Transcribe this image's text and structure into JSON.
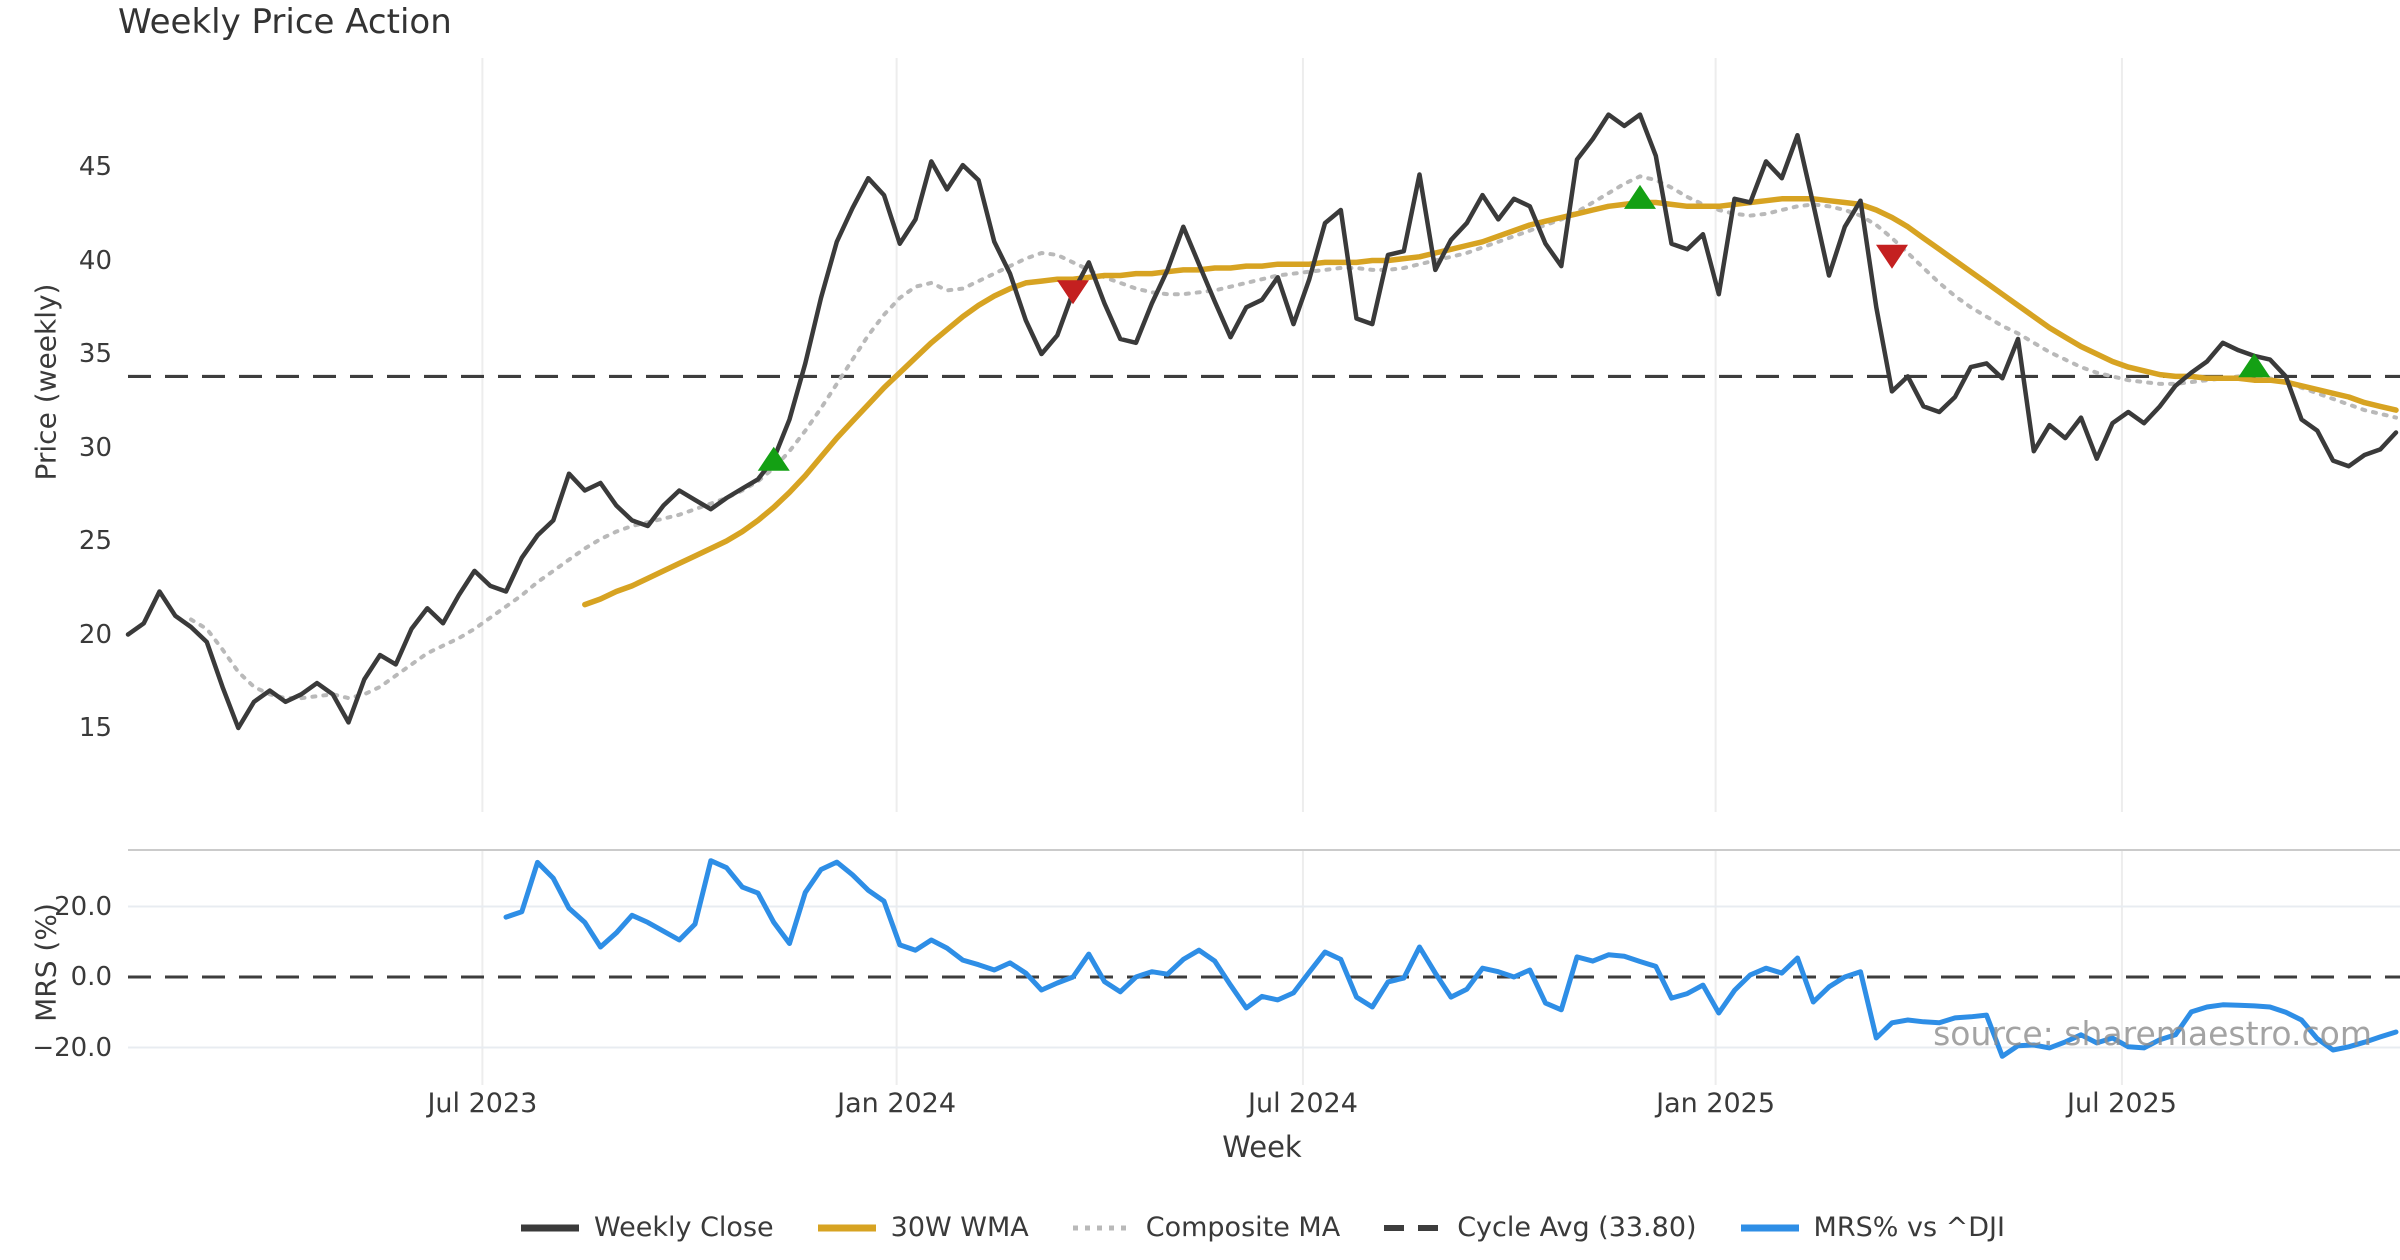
{
  "title": "Weekly Price Action",
  "watermark": "source: sharemaestro.com",
  "axes": {
    "price_axis_label": "Price (weekly)",
    "mrs_axis_label": "MRS (%)",
    "x_axis_label": "Week",
    "price_ticks": [
      15,
      20,
      25,
      30,
      35,
      40,
      45
    ],
    "mrs_ticks": [
      {
        "label": "20.0",
        "value": 20
      },
      {
        "label": "0.0",
        "value": 0
      },
      {
        "label": "−20.0",
        "value": -20
      }
    ],
    "x_ticks": [
      {
        "label": "Jul 2023",
        "week": 22.5
      },
      {
        "label": "Jan 2024",
        "week": 48.8
      },
      {
        "label": "Jul 2024",
        "week": 74.6
      },
      {
        "label": "Jan 2025",
        "week": 100.8
      },
      {
        "label": "Jul 2025",
        "week": 126.6
      }
    ]
  },
  "legend": {
    "items": [
      {
        "label": "Weekly Close",
        "swatch": "solid",
        "color": "#3a3a3a"
      },
      {
        "label": "30W WMA",
        "swatch": "solid",
        "color": "#d7a322"
      },
      {
        "label": "Composite MA",
        "swatch": "dotted",
        "color": "#b9b9b9"
      },
      {
        "label": "Cycle Avg (33.80)",
        "swatch": "dashed",
        "color": "#3d3d3d"
      },
      {
        "label": "MRS% vs ^DJI",
        "swatch": "solid",
        "color": "#2e8ee6"
      }
    ]
  },
  "colors": {
    "close": "#3a3a3a",
    "wma": "#d7a322",
    "composite": "#b9b9b9",
    "cycle_dash": "#3d3d3d",
    "mrs": "#2e8ee6",
    "buy_marker": "#14a014",
    "sell_marker": "#c42020",
    "grid_vertical": "#ededed",
    "grid_horizontal": "#e8ecf1",
    "spine": "#cbcbcb",
    "text": "#3a3a3a"
  },
  "chart_data": {
    "type": "line",
    "title": "Weekly Price Action",
    "x_unit": "weeks",
    "n_points": 145,
    "panels": [
      {
        "name": "price",
        "ylabel": "Price (weekly)",
        "ylim": [
          12.8,
          50.5
        ],
        "yticks": [
          15,
          20,
          25,
          30,
          35,
          40,
          45
        ]
      },
      {
        "name": "mrs",
        "ylabel": "MRS (%)",
        "ylim": [
          -30,
          36
        ],
        "yticks": [
          20,
          0,
          -20
        ]
      }
    ],
    "cycle_avg": 33.8,
    "series": [
      {
        "name": "Weekly Close",
        "panel": "price",
        "values": [
          20.0,
          20.6,
          22.3,
          21.0,
          20.4,
          19.6,
          17.2,
          15.0,
          16.4,
          17.0,
          16.4,
          16.8,
          17.4,
          16.8,
          15.3,
          17.6,
          18.9,
          18.4,
          20.3,
          21.4,
          20.6,
          22.1,
          23.4,
          22.6,
          22.3,
          24.1,
          25.3,
          26.1,
          28.6,
          27.7,
          28.1,
          26.9,
          26.1,
          25.8,
          26.9,
          27.7,
          27.2,
          26.7,
          27.3,
          27.8,
          28.3,
          29.4,
          31.5,
          34.5,
          38.0,
          41.0,
          42.8,
          44.4,
          43.5,
          40.9,
          42.2,
          45.3,
          43.8,
          45.1,
          44.3,
          41.0,
          39.3,
          36.8,
          35.0,
          36.0,
          38.3,
          39.9,
          37.7,
          35.8,
          35.6,
          37.7,
          39.5,
          41.8,
          39.8,
          37.8,
          35.9,
          37.5,
          37.9,
          39.1,
          36.6,
          39.0,
          42.0,
          42.7,
          36.9,
          36.6,
          40.3,
          40.5,
          44.6,
          39.5,
          41.1,
          42.0,
          43.5,
          42.2,
          43.3,
          42.9,
          40.9,
          39.7,
          45.4,
          46.5,
          47.8,
          47.2,
          47.8,
          45.6,
          40.9,
          40.6,
          41.4,
          38.2,
          43.3,
          43.1,
          45.3,
          44.4,
          46.7,
          43.0,
          39.2,
          41.8,
          43.2,
          37.5,
          33.0,
          33.8,
          32.2,
          31.9,
          32.7,
          34.3,
          34.5,
          33.7,
          35.8,
          29.8,
          31.2,
          30.5,
          31.6,
          29.4,
          31.3,
          31.9,
          31.3,
          32.2,
          33.3,
          34.0,
          34.6,
          35.6,
          35.2,
          34.9,
          34.7,
          33.8,
          31.5,
          30.9,
          29.3,
          29.0,
          29.6,
          29.9,
          30.8
        ]
      },
      {
        "name": "30W WMA",
        "panel": "price",
        "values": [
          null,
          null,
          null,
          null,
          null,
          null,
          null,
          null,
          null,
          null,
          null,
          null,
          null,
          null,
          null,
          null,
          null,
          null,
          null,
          null,
          null,
          null,
          null,
          null,
          null,
          null,
          null,
          null,
          null,
          21.6,
          21.9,
          22.3,
          22.6,
          23.0,
          23.4,
          23.8,
          24.2,
          24.6,
          25.0,
          25.5,
          26.1,
          26.8,
          27.6,
          28.5,
          29.5,
          30.5,
          31.4,
          32.3,
          33.2,
          34.0,
          34.8,
          35.6,
          36.3,
          37.0,
          37.6,
          38.1,
          38.5,
          38.8,
          38.9,
          39.0,
          39.0,
          39.1,
          39.2,
          39.2,
          39.3,
          39.3,
          39.4,
          39.5,
          39.5,
          39.6,
          39.6,
          39.7,
          39.7,
          39.8,
          39.8,
          39.8,
          39.9,
          39.9,
          39.9,
          40.0,
          40.0,
          40.1,
          40.2,
          40.4,
          40.6,
          40.8,
          41.0,
          41.3,
          41.6,
          41.9,
          42.1,
          42.3,
          42.5,
          42.7,
          42.9,
          43.0,
          43.1,
          43.1,
          43.0,
          42.9,
          42.9,
          42.9,
          43.0,
          43.1,
          43.2,
          43.3,
          43.3,
          43.3,
          43.2,
          43.1,
          43.0,
          42.7,
          42.3,
          41.8,
          41.2,
          40.6,
          40.0,
          39.4,
          38.8,
          38.2,
          37.6,
          37.0,
          36.4,
          35.9,
          35.4,
          35.0,
          34.6,
          34.3,
          34.1,
          33.9,
          33.8,
          33.8,
          33.7,
          33.7,
          33.7,
          33.6,
          33.6,
          33.5,
          33.3,
          33.1,
          32.9,
          32.7,
          32.4,
          32.2,
          32.0
        ]
      },
      {
        "name": "Composite MA",
        "panel": "price",
        "values": [
          null,
          null,
          null,
          null,
          20.8,
          20.3,
          19.2,
          18.0,
          17.2,
          16.8,
          16.6,
          16.6,
          16.7,
          16.8,
          16.6,
          16.8,
          17.2,
          17.8,
          18.4,
          19.0,
          19.4,
          19.8,
          20.3,
          20.9,
          21.5,
          22.1,
          22.8,
          23.4,
          24.0,
          24.6,
          25.1,
          25.5,
          25.8,
          26.0,
          26.2,
          26.4,
          26.7,
          27.0,
          27.3,
          27.7,
          28.2,
          28.9,
          29.8,
          30.9,
          32.1,
          33.4,
          34.7,
          36.0,
          37.1,
          38.0,
          38.6,
          38.8,
          38.4,
          38.5,
          38.9,
          39.3,
          39.7,
          40.1,
          40.4,
          40.3,
          39.9,
          39.5,
          39.1,
          38.8,
          38.5,
          38.3,
          38.2,
          38.2,
          38.3,
          38.4,
          38.6,
          38.8,
          39.0,
          39.2,
          39.3,
          39.4,
          39.5,
          39.6,
          39.6,
          39.5,
          39.5,
          39.6,
          39.8,
          40.0,
          40.2,
          40.4,
          40.7,
          41.0,
          41.3,
          41.6,
          41.9,
          42.2,
          42.6,
          43.1,
          43.6,
          44.1,
          44.5,
          44.3,
          43.9,
          43.4,
          43.0,
          42.7,
          42.5,
          42.4,
          42.5,
          42.7,
          42.9,
          43.0,
          42.9,
          42.7,
          42.4,
          41.9,
          41.2,
          40.4,
          39.6,
          38.8,
          38.1,
          37.5,
          37.0,
          36.5,
          36.1,
          35.6,
          35.1,
          34.7,
          34.3,
          34.0,
          33.8,
          33.6,
          33.5,
          33.4,
          33.4,
          33.5,
          33.6,
          33.7,
          33.8,
          33.8,
          33.7,
          33.5,
          33.2,
          32.9,
          32.6,
          32.3,
          32.0,
          31.8,
          31.6
        ]
      },
      {
        "name": "MRS% vs ^DJI",
        "panel": "mrs",
        "values": [
          null,
          null,
          null,
          null,
          null,
          null,
          null,
          null,
          null,
          null,
          null,
          null,
          null,
          null,
          null,
          null,
          null,
          null,
          null,
          null,
          null,
          null,
          null,
          null,
          17.0,
          18.5,
          32.5,
          28.0,
          19.5,
          15.5,
          8.5,
          12.5,
          17.5,
          15.5,
          13.0,
          10.5,
          15.0,
          33.0,
          31.0,
          25.5,
          23.8,
          15.5,
          9.5,
          24.0,
          30.5,
          32.6,
          29.0,
          24.6,
          21.5,
          9.1,
          7.6,
          10.5,
          8.2,
          4.8,
          3.5,
          2.0,
          4.0,
          1.1,
          -3.7,
          -1.7,
          0.0,
          6.5,
          -1.3,
          -4.2,
          0.0,
          1.5,
          0.8,
          5.0,
          7.6,
          4.5,
          -2.3,
          -8.8,
          -5.5,
          -6.5,
          -4.5,
          1.4,
          7.1,
          5.0,
          -5.7,
          -8.5,
          -1.4,
          -0.3,
          8.5,
          1.1,
          -5.7,
          -3.5,
          2.5,
          1.5,
          0.0,
          2.0,
          -7.4,
          -9.3,
          5.7,
          4.5,
          6.3,
          5.9,
          4.4,
          3.0,
          -6.0,
          -4.7,
          -2.3,
          -10.2,
          -3.8,
          0.6,
          2.5,
          1.1,
          5.4,
          -7.1,
          -2.8,
          0.0,
          1.5,
          -17.3,
          -13.0,
          -12.2,
          -12.7,
          -13.0,
          -11.6,
          -11.3,
          -10.8,
          -22.5,
          -19.5,
          -19.3,
          -20.1,
          -18.4,
          -16.4,
          -18.7,
          -17.3,
          -19.8,
          -20.1,
          -17.8,
          -16.4,
          -9.9,
          -8.5,
          -7.9,
          -8.0,
          -8.2,
          -8.5,
          -10.0,
          -12.2,
          -17.5,
          -20.7,
          -19.8,
          -18.5,
          -17.0,
          -15.6
        ]
      }
    ],
    "markers": [
      {
        "type": "buy",
        "week": 41,
        "value": 29.4
      },
      {
        "type": "sell",
        "week": 60,
        "value": 38.3
      },
      {
        "type": "buy",
        "week": 96,
        "value": 43.4
      },
      {
        "type": "sell",
        "week": 112,
        "value": 40.2
      },
      {
        "type": "buy",
        "week": 135,
        "value": 34.4
      }
    ],
    "legend_position": "bottom-center",
    "grid": "vertical-light"
  }
}
